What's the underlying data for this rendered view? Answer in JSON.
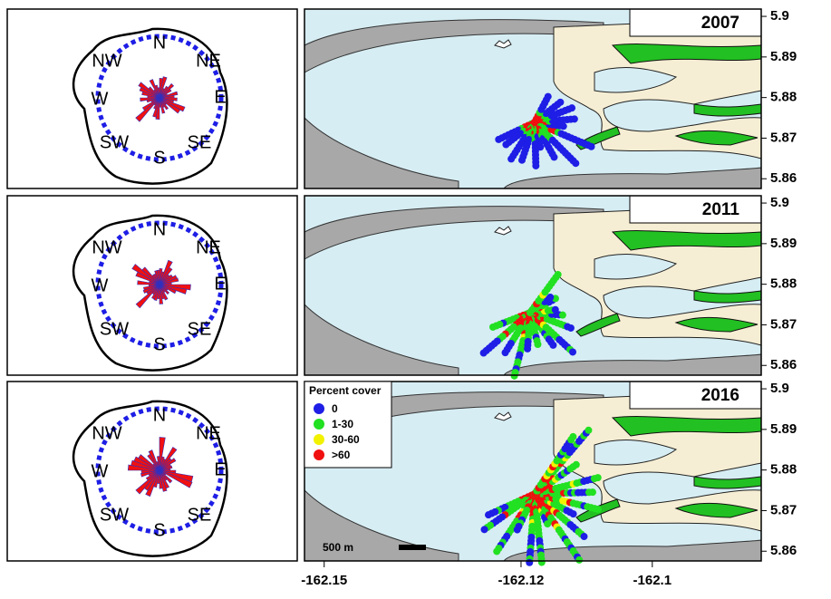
{
  "panels": [
    {
      "year": "2007"
    },
    {
      "year": "2011"
    },
    {
      "year": "2016"
    }
  ],
  "compass_labels": [
    "N",
    "NE",
    "E",
    "SE",
    "S",
    "SW",
    "W",
    "NW"
  ],
  "yaxis": {
    "lim": [
      5.8576,
      5.9018
    ],
    "ticks": [
      5.9,
      5.89,
      5.88,
      5.87,
      5.86
    ]
  },
  "xaxis": {
    "lim": [
      -162.153,
      -162.0834
    ],
    "ticks": [
      -162.15,
      -162.12,
      -162.1
    ]
  },
  "legend": {
    "title": "Percent cover",
    "items": [
      {
        "label": "0",
        "color": "#1e1ee6"
      },
      {
        "label": "1-30",
        "color": "#22e022"
      },
      {
        "label": "30-60",
        "color": "#f2f200"
      },
      {
        "label": ">60",
        "color": "#f01010"
      }
    ]
  },
  "scale_bar": "500 m"
}
